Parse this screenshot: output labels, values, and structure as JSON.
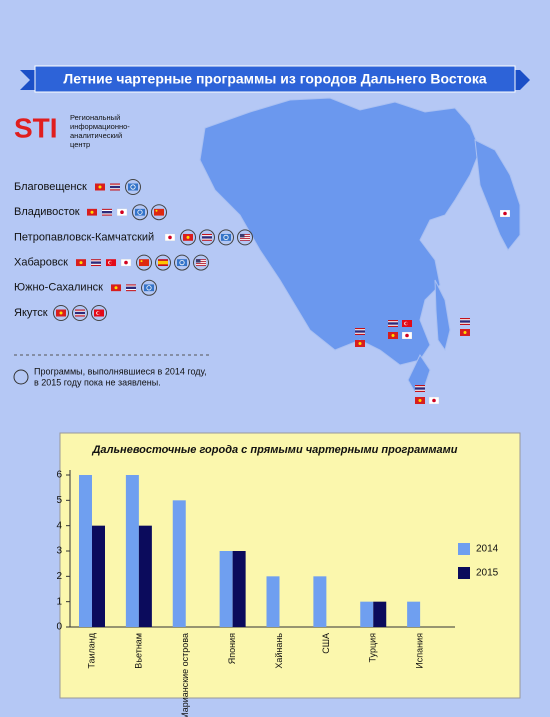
{
  "header": {
    "title": "Летние чартерные программы из городов Дальнего Востока",
    "logo": "STI",
    "org": [
      "Региональный",
      "информационно-",
      "аналитический",
      "центр"
    ]
  },
  "cities": [
    "Благовещенск",
    "Владивосток",
    "Петропавловск-Камчатский",
    "Хабаровск",
    "Южно-Сахалинск",
    "Якутск"
  ],
  "note": [
    "Программы, выполнявшиеся в 2014 году,",
    "в 2015 году пока не заявлены."
  ],
  "chart_data": {
    "type": "bar",
    "title": "Дальневосточные города с прямыми чартерными программами",
    "categories": [
      "Таиланд",
      "Вьетнам",
      "Марианские острова",
      "Япония",
      "Хайнань",
      "США",
      "Турция",
      "Испания"
    ],
    "series": [
      {
        "name": "2014",
        "color": "#6f9ff0",
        "values": [
          6,
          6,
          5,
          3,
          2,
          2,
          1,
          1
        ]
      },
      {
        "name": "2015",
        "color": "#0b0b5c",
        "values": [
          4,
          4,
          0,
          3,
          0,
          0,
          1,
          0
        ]
      }
    ],
    "ylim": [
      0,
      6
    ],
    "yticks": [
      0,
      1,
      2,
      3,
      4,
      5,
      6
    ],
    "grid": false
  }
}
